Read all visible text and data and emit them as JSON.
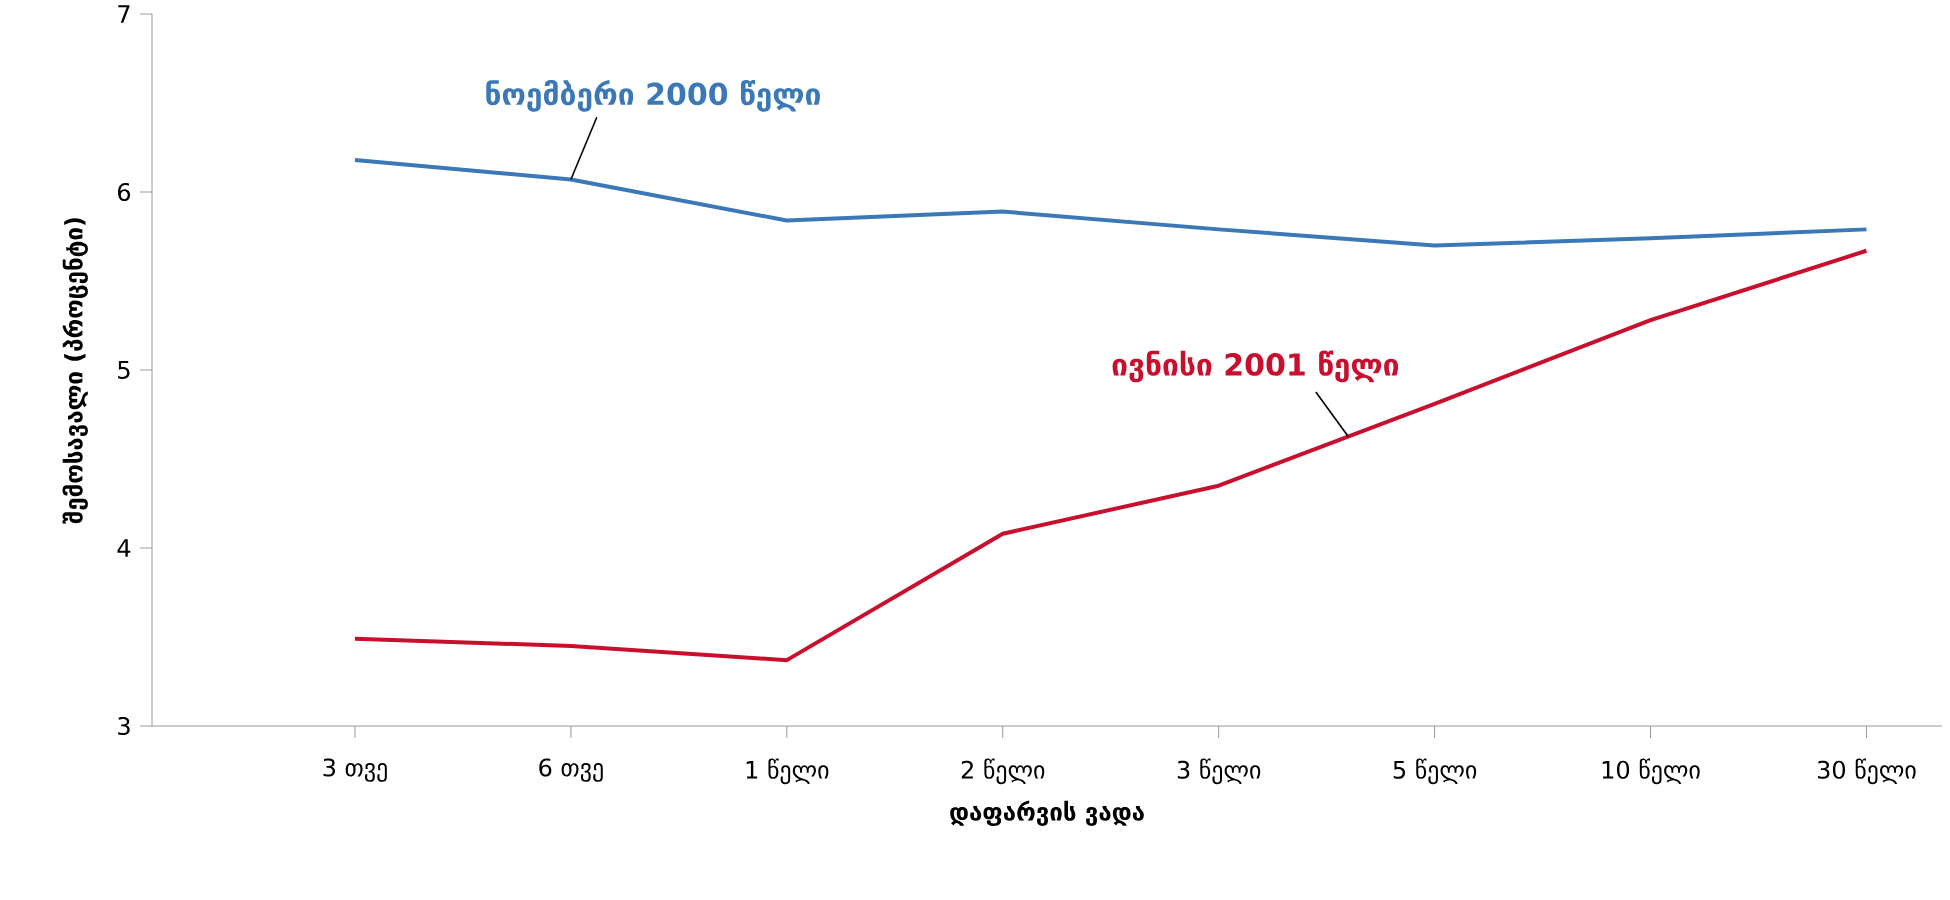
{
  "chart_data": {
    "type": "line",
    "xlabel": "დაფარვის ვადა",
    "ylabel": "შემოსავალი (პროცენტი)",
    "categories": [
      "3 თვე",
      "6 თვე",
      "1 წელი",
      "2 წელი",
      "3 წელი",
      "5 წელი",
      "10 წელი",
      "30 წელი"
    ],
    "series": [
      {
        "name": "ნოემბერი 2000 წელი",
        "color": "#3a78b8",
        "values": [
          6.18,
          6.07,
          5.84,
          5.89,
          5.79,
          5.7,
          5.74,
          5.79
        ]
      },
      {
        "name": "ივნისი 2001 წელი",
        "color": "#c8102e",
        "values": [
          3.49,
          3.45,
          3.37,
          4.08,
          4.35,
          4.81,
          5.28,
          5.67
        ]
      }
    ],
    "ylim": [
      3,
      7
    ],
    "yticks": [
      3,
      4,
      5,
      6,
      7
    ],
    "grid": false,
    "legend": false,
    "marker": "none",
    "line_style": "solid"
  }
}
